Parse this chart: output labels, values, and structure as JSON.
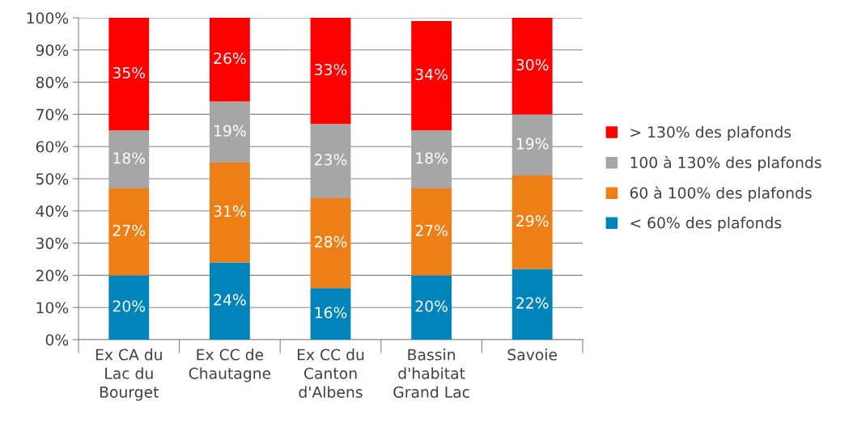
{
  "chart_data": {
    "type": "bar",
    "stacked": true,
    "categories": [
      "Ex CA du\nLac du\nBourget",
      "Ex CC de\nChautagne",
      "Ex CC du\nCanton\nd'Albens",
      "Bassin\nd'habitat\nGrand Lac",
      "Savoie"
    ],
    "series": [
      {
        "name": "< 60% des plafonds",
        "color": "#0084b9",
        "values": [
          20,
          24,
          16,
          20,
          22
        ]
      },
      {
        "name": "60 à 100% des plafonds",
        "color": "#ee7f16",
        "values": [
          27,
          31,
          28,
          27,
          29
        ]
      },
      {
        "name": "100 à 130% des plafonds",
        "color": "#a6a6a6",
        "values": [
          18,
          19,
          23,
          18,
          19
        ]
      },
      {
        "name": "> 130% des plafonds",
        "color": "#ff0000",
        "values": [
          35,
          26,
          33,
          34,
          30
        ]
      }
    ],
    "ylim": [
      0,
      100
    ],
    "yticks": [
      {
        "value": 0,
        "label": "0%"
      },
      {
        "value": 10,
        "label": "10%"
      },
      {
        "value": 20,
        "label": "20%"
      },
      {
        "value": 30,
        "label": "30%"
      },
      {
        "value": 40,
        "label": "40%"
      },
      {
        "value": 50,
        "label": "50%"
      },
      {
        "value": 60,
        "label": "60%"
      },
      {
        "value": 70,
        "label": "70%"
      },
      {
        "value": 80,
        "label": "80%"
      },
      {
        "value": 90,
        "label": "90%"
      },
      {
        "value": 100,
        "label": "100%"
      }
    ],
    "value_labels": [
      [
        "20%",
        "24%",
        "16%",
        "20%",
        "22%"
      ],
      [
        "27%",
        "31%",
        "28%",
        "27%",
        "29%"
      ],
      [
        "18%",
        "19%",
        "23%",
        "18%",
        "19%"
      ],
      [
        "35%",
        "26%",
        "33%",
        "34%",
        "30%"
      ]
    ],
    "grid": "y",
    "legend": "right"
  }
}
